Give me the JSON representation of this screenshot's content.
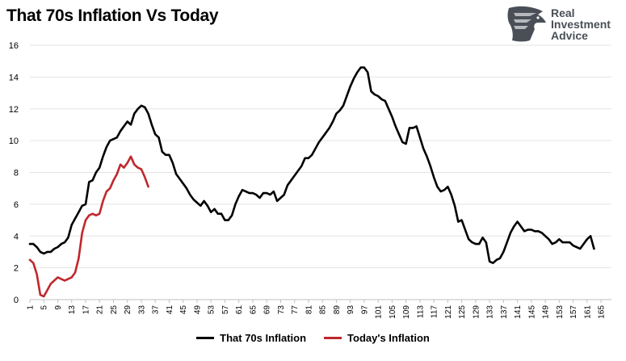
{
  "title": "That 70s Inflation Vs Today",
  "logo": {
    "line1": "Real",
    "line2": "Investment",
    "line3": "Advice",
    "icon": "eagle-head-icon"
  },
  "chart_data": {
    "type": "line",
    "title": "That 70s Inflation Vs Today",
    "ylim": [
      0,
      16
    ],
    "yticks": [
      0,
      2,
      4,
      6,
      8,
      10,
      12,
      14,
      16
    ],
    "xlim": [
      1,
      168
    ],
    "xticks": [
      1,
      5,
      9,
      13,
      17,
      21,
      25,
      29,
      33,
      37,
      41,
      45,
      49,
      53,
      57,
      61,
      65,
      69,
      73,
      77,
      81,
      85,
      89,
      93,
      97,
      101,
      105,
      109,
      113,
      117,
      121,
      125,
      129,
      133,
      137,
      141,
      145,
      149,
      153,
      157,
      161,
      165
    ],
    "grid": true,
    "legend_position": "bottom",
    "series": [
      {
        "name": "That 70s Inflation",
        "color": "#000000",
        "points": [
          [
            1,
            3.5
          ],
          [
            2,
            3.5
          ],
          [
            3,
            3.3
          ],
          [
            4,
            3.0
          ],
          [
            5,
            2.9
          ],
          [
            6,
            3.0
          ],
          [
            7,
            3.0
          ],
          [
            8,
            3.2
          ],
          [
            9,
            3.3
          ],
          [
            10,
            3.5
          ],
          [
            11,
            3.6
          ],
          [
            12,
            3.9
          ],
          [
            13,
            4.7
          ],
          [
            14,
            5.1
          ],
          [
            15,
            5.5
          ],
          [
            16,
            5.9
          ],
          [
            17,
            6.0
          ],
          [
            18,
            7.4
          ],
          [
            19,
            7.5
          ],
          [
            20,
            8.0
          ],
          [
            21,
            8.3
          ],
          [
            22,
            9.0
          ],
          [
            23,
            9.6
          ],
          [
            24,
            10.0
          ],
          [
            25,
            10.1
          ],
          [
            26,
            10.2
          ],
          [
            27,
            10.6
          ],
          [
            28,
            10.9
          ],
          [
            29,
            11.2
          ],
          [
            30,
            11.0
          ],
          [
            31,
            11.7
          ],
          [
            32,
            12.0
          ],
          [
            33,
            12.2
          ],
          [
            34,
            12.1
          ],
          [
            35,
            11.7
          ],
          [
            36,
            11.0
          ],
          [
            37,
            10.4
          ],
          [
            38,
            10.2
          ],
          [
            39,
            9.3
          ],
          [
            40,
            9.1
          ],
          [
            41,
            9.1
          ],
          [
            42,
            8.6
          ],
          [
            43,
            7.9
          ],
          [
            44,
            7.6
          ],
          [
            45,
            7.3
          ],
          [
            46,
            7.0
          ],
          [
            47,
            6.6
          ],
          [
            48,
            6.3
          ],
          [
            49,
            6.1
          ],
          [
            50,
            5.9
          ],
          [
            51,
            6.2
          ],
          [
            52,
            5.9
          ],
          [
            53,
            5.5
          ],
          [
            54,
            5.7
          ],
          [
            55,
            5.4
          ],
          [
            56,
            5.4
          ],
          [
            57,
            5.0
          ],
          [
            58,
            5.0
          ],
          [
            59,
            5.3
          ],
          [
            60,
            6.0
          ],
          [
            61,
            6.5
          ],
          [
            62,
            6.9
          ],
          [
            63,
            6.8
          ],
          [
            64,
            6.7
          ],
          [
            65,
            6.7
          ],
          [
            66,
            6.6
          ],
          [
            67,
            6.4
          ],
          [
            68,
            6.7
          ],
          [
            69,
            6.7
          ],
          [
            70,
            6.6
          ],
          [
            71,
            6.8
          ],
          [
            72,
            6.2
          ],
          [
            73,
            6.4
          ],
          [
            74,
            6.6
          ],
          [
            75,
            7.2
          ],
          [
            76,
            7.5
          ],
          [
            77,
            7.8
          ],
          [
            78,
            8.1
          ],
          [
            79,
            8.4
          ],
          [
            80,
            8.9
          ],
          [
            81,
            8.9
          ],
          [
            82,
            9.1
          ],
          [
            83,
            9.5
          ],
          [
            84,
            9.9
          ],
          [
            85,
            10.2
          ],
          [
            86,
            10.5
          ],
          [
            87,
            10.8
          ],
          [
            88,
            11.2
          ],
          [
            89,
            11.7
          ],
          [
            90,
            11.9
          ],
          [
            91,
            12.2
          ],
          [
            92,
            12.8
          ],
          [
            93,
            13.4
          ],
          [
            94,
            13.9
          ],
          [
            95,
            14.3
          ],
          [
            96,
            14.6
          ],
          [
            97,
            14.6
          ],
          [
            98,
            14.3
          ],
          [
            99,
            13.1
          ],
          [
            100,
            12.9
          ],
          [
            101,
            12.8
          ],
          [
            102,
            12.6
          ],
          [
            103,
            12.5
          ],
          [
            104,
            12.0
          ],
          [
            105,
            11.5
          ],
          [
            106,
            10.9
          ],
          [
            107,
            10.4
          ],
          [
            108,
            9.9
          ],
          [
            109,
            9.8
          ],
          [
            110,
            10.8
          ],
          [
            111,
            10.8
          ],
          [
            112,
            10.9
          ],
          [
            113,
            10.2
          ],
          [
            114,
            9.5
          ],
          [
            115,
            9.0
          ],
          [
            116,
            8.4
          ],
          [
            117,
            7.7
          ],
          [
            118,
            7.1
          ],
          [
            119,
            6.8
          ],
          [
            120,
            6.9
          ],
          [
            121,
            7.1
          ],
          [
            122,
            6.6
          ],
          [
            123,
            5.9
          ],
          [
            124,
            4.9
          ],
          [
            125,
            5.0
          ],
          [
            126,
            4.4
          ],
          [
            127,
            3.8
          ],
          [
            128,
            3.6
          ],
          [
            129,
            3.5
          ],
          [
            130,
            3.5
          ],
          [
            131,
            3.9
          ],
          [
            132,
            3.6
          ],
          [
            133,
            2.4
          ],
          [
            134,
            2.3
          ],
          [
            135,
            2.5
          ],
          [
            136,
            2.6
          ],
          [
            137,
            3.0
          ],
          [
            138,
            3.6
          ],
          [
            139,
            4.2
          ],
          [
            140,
            4.6
          ],
          [
            141,
            4.9
          ],
          [
            142,
            4.6
          ],
          [
            143,
            4.3
          ],
          [
            144,
            4.4
          ],
          [
            145,
            4.4
          ],
          [
            146,
            4.3
          ],
          [
            147,
            4.3
          ],
          [
            148,
            4.2
          ],
          [
            149,
            4.0
          ],
          [
            150,
            3.8
          ],
          [
            151,
            3.5
          ],
          [
            152,
            3.6
          ],
          [
            153,
            3.8
          ],
          [
            154,
            3.6
          ],
          [
            155,
            3.6
          ],
          [
            156,
            3.6
          ],
          [
            157,
            3.4
          ],
          [
            158,
            3.3
          ],
          [
            159,
            3.2
          ],
          [
            160,
            3.5
          ],
          [
            161,
            3.8
          ],
          [
            162,
            4.0
          ],
          [
            163,
            3.2
          ]
        ]
      },
      {
        "name": "Today's Inflation",
        "color": "#c0272d",
        "points": [
          [
            1,
            2.5
          ],
          [
            2,
            2.3
          ],
          [
            3,
            1.6
          ],
          [
            4,
            0.3
          ],
          [
            5,
            0.2
          ],
          [
            6,
            0.6
          ],
          [
            7,
            1.0
          ],
          [
            8,
            1.2
          ],
          [
            9,
            1.4
          ],
          [
            10,
            1.3
          ],
          [
            11,
            1.2
          ],
          [
            12,
            1.3
          ],
          [
            13,
            1.4
          ],
          [
            14,
            1.7
          ],
          [
            15,
            2.6
          ],
          [
            16,
            4.2
          ],
          [
            17,
            5.0
          ],
          [
            18,
            5.3
          ],
          [
            19,
            5.4
          ],
          [
            20,
            5.3
          ],
          [
            21,
            5.4
          ],
          [
            22,
            6.2
          ],
          [
            23,
            6.8
          ],
          [
            24,
            7.0
          ],
          [
            25,
            7.5
          ],
          [
            26,
            7.9
          ],
          [
            27,
            8.5
          ],
          [
            28,
            8.3
          ],
          [
            29,
            8.6
          ],
          [
            30,
            9.0
          ],
          [
            31,
            8.5
          ],
          [
            32,
            8.3
          ],
          [
            33,
            8.2
          ],
          [
            34,
            7.7
          ],
          [
            35,
            7.1
          ]
        ]
      }
    ]
  }
}
